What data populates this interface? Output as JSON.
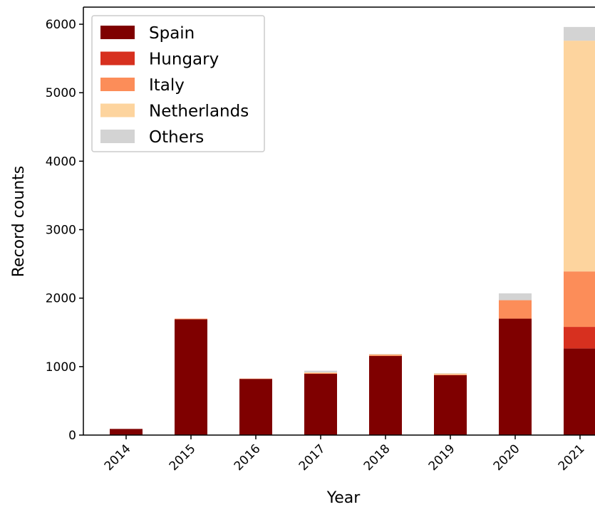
{
  "chart_data": {
    "type": "bar",
    "stacked": true,
    "xlabel": "Year",
    "ylabel": "Record counts",
    "ylim": [
      0,
      6250
    ],
    "yticks": [
      0,
      1000,
      2000,
      3000,
      4000,
      5000,
      6000
    ],
    "categories": [
      "2014",
      "2015",
      "2016",
      "2017",
      "2018",
      "2019",
      "2020",
      "2021"
    ],
    "series": [
      {
        "name": "Spain",
        "color": "#7f0000",
        "values": [
          90,
          1690,
          820,
          895,
          1155,
          875,
          1700,
          1265
        ]
      },
      {
        "name": "Hungary",
        "color": "#d7301f",
        "values": [
          0,
          0,
          0,
          0,
          0,
          0,
          0,
          315
        ]
      },
      {
        "name": "Italy",
        "color": "#fc8d59",
        "values": [
          0,
          10,
          5,
          10,
          15,
          10,
          270,
          810
        ]
      },
      {
        "name": "Netherlands",
        "color": "#fdd49e",
        "values": [
          0,
          0,
          0,
          10,
          10,
          15,
          0,
          3370
        ]
      },
      {
        "name": "Others",
        "color": "#d3d3d3",
        "values": [
          0,
          0,
          0,
          25,
          5,
          5,
          100,
          200
        ]
      }
    ],
    "legend_position": "top-left",
    "grid": false
  }
}
